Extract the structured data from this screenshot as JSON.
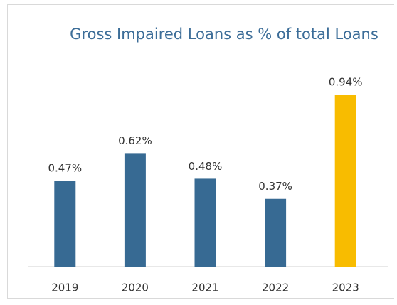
{
  "chart_data": {
    "type": "bar",
    "title": "Gross Impaired Loans as % of total Loans",
    "categories": [
      "2019",
      "2020",
      "2021",
      "2022",
      "2023"
    ],
    "values": [
      0.47,
      0.62,
      0.48,
      0.37,
      0.94
    ],
    "value_labels": [
      "0.47%",
      "0.62%",
      "0.48%",
      "0.37%",
      "0.94%"
    ],
    "colors": [
      "#376a93",
      "#376a93",
      "#376a93",
      "#376a93",
      "#f8bc00"
    ]
  }
}
